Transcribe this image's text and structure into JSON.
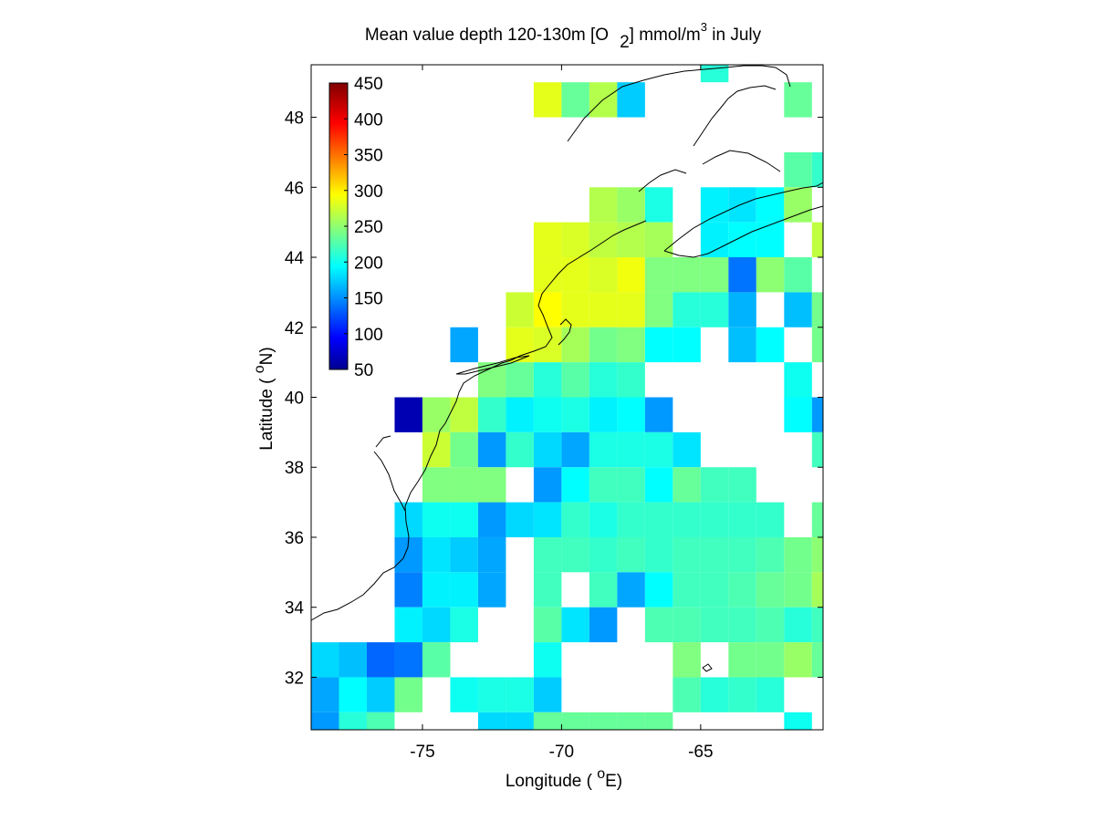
{
  "title": {
    "prefix": "Mean value depth 120-130m [O",
    "sub": "2",
    "mid": "] mmol/m",
    "sup": "3",
    "suffix": " in July"
  },
  "xlabel": {
    "prefix": "Longitude ( ",
    "deg": "o",
    "unit": "E)"
  },
  "ylabel": {
    "prefix": "Latitude ( ",
    "deg": "o",
    "unit": "N)"
  },
  "colors": {
    "land_outline": "#000000",
    "nan": "#ffffff"
  },
  "chart_data": {
    "type": "heatmap",
    "colormap": "jet",
    "cell_size_deg": 1,
    "xlim": [
      -79,
      -60.6
    ],
    "ylim": [
      30.5,
      49.5
    ],
    "xticks": [
      -75,
      -70,
      -65
    ],
    "yticks": [
      32,
      34,
      36,
      38,
      40,
      42,
      44,
      46,
      48
    ],
    "colorbar": {
      "min": 50,
      "max": 450,
      "ticks": [
        50,
        100,
        150,
        200,
        250,
        300,
        350,
        400,
        450
      ],
      "position": "upper-left"
    },
    "lon_centers": [
      -78.5,
      -77.5,
      -76.5,
      -75.5,
      -74.5,
      -73.5,
      -72.5,
      -71.5,
      -70.5,
      -69.5,
      -68.5,
      -67.5,
      -66.5,
      -65.5,
      -64.5,
      -63.5,
      -62.5,
      -61.5,
      -60.5
    ],
    "lat_centers": [
      49.5,
      48.5,
      47.5,
      46.5,
      45.5,
      44.5,
      43.5,
      42.5,
      41.5,
      40.5,
      39.5,
      38.5,
      37.5,
      36.5,
      35.5,
      34.5,
      33.5,
      32.5,
      31.5,
      30.5
    ],
    "rows": [
      [
        null,
        null,
        null,
        null,
        null,
        null,
        null,
        null,
        null,
        null,
        null,
        null,
        null,
        null,
        215,
        null,
        null,
        null,
        null
      ],
      [
        null,
        null,
        null,
        null,
        null,
        null,
        null,
        null,
        290,
        240,
        270,
        180,
        null,
        null,
        null,
        null,
        null,
        240,
        null
      ],
      [
        null,
        null,
        null,
        null,
        null,
        null,
        null,
        null,
        null,
        null,
        null,
        null,
        null,
        null,
        null,
        null,
        null,
        null,
        null
      ],
      [
        null,
        null,
        null,
        null,
        null,
        null,
        null,
        null,
        null,
        null,
        null,
        null,
        null,
        null,
        null,
        null,
        null,
        235,
        220
      ],
      [
        null,
        null,
        null,
        null,
        null,
        null,
        null,
        null,
        null,
        null,
        270,
        260,
        210,
        null,
        195,
        190,
        200,
        260,
        null
      ],
      [
        null,
        null,
        null,
        null,
        null,
        null,
        null,
        null,
        290,
        285,
        275,
        270,
        265,
        null,
        195,
        200,
        200,
        null,
        275
      ],
      [
        null,
        null,
        null,
        null,
        null,
        null,
        null,
        null,
        290,
        290,
        285,
        295,
        250,
        250,
        250,
        145,
        255,
        235,
        null
      ],
      [
        null,
        null,
        null,
        null,
        null,
        null,
        null,
        280,
        300,
        290,
        290,
        290,
        250,
        215,
        215,
        170,
        null,
        175,
        245
      ],
      [
        null,
        null,
        null,
        null,
        null,
        165,
        null,
        290,
        285,
        265,
        245,
        250,
        200,
        200,
        null,
        175,
        200,
        null,
        245
      ],
      [
        null,
        null,
        null,
        null,
        null,
        null,
        250,
        240,
        215,
        235,
        215,
        220,
        null,
        null,
        null,
        null,
        null,
        205,
        null
      ],
      [
        null,
        null,
        null,
        70,
        260,
        275,
        220,
        195,
        205,
        210,
        195,
        200,
        160,
        null,
        null,
        null,
        null,
        200,
        160
      ],
      [
        null,
        null,
        null,
        null,
        280,
        245,
        160,
        220,
        185,
        165,
        210,
        210,
        210,
        190,
        null,
        null,
        null,
        null,
        225
      ],
      [
        null,
        null,
        null,
        null,
        250,
        250,
        250,
        null,
        160,
        200,
        225,
        225,
        200,
        240,
        225,
        225,
        null,
        null,
        null
      ],
      [
        null,
        null,
        null,
        185,
        205,
        205,
        160,
        185,
        190,
        220,
        210,
        220,
        220,
        220,
        220,
        220,
        220,
        null,
        240
      ],
      [
        null,
        null,
        null,
        160,
        190,
        180,
        165,
        null,
        225,
        225,
        220,
        225,
        220,
        225,
        225,
        225,
        230,
        245,
        255
      ],
      [
        null,
        null,
        null,
        150,
        195,
        195,
        165,
        null,
        225,
        null,
        225,
        165,
        200,
        225,
        225,
        230,
        240,
        245,
        265
      ],
      [
        null,
        null,
        null,
        195,
        185,
        210,
        null,
        null,
        235,
        190,
        160,
        null,
        230,
        230,
        225,
        225,
        230,
        215,
        225
      ],
      [
        185,
        175,
        140,
        145,
        235,
        null,
        null,
        null,
        205,
        null,
        null,
        null,
        null,
        250,
        null,
        245,
        245,
        260,
        240
      ],
      [
        165,
        200,
        180,
        245,
        null,
        205,
        210,
        210,
        180,
        null,
        null,
        null,
        null,
        230,
        215,
        220,
        215,
        null,
        null
      ],
      [
        160,
        215,
        230,
        null,
        null,
        null,
        185,
        185,
        240,
        240,
        240,
        240,
        240,
        null,
        null,
        null,
        null,
        205,
        null
      ]
    ]
  }
}
